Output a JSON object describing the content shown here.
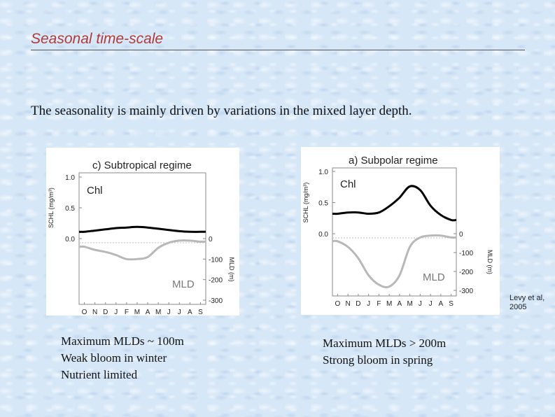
{
  "slide": {
    "title": "Seasonal time-scale",
    "intro": "The seasonality is mainly driven by variations in the mixed layer depth."
  },
  "citation": {
    "line1": "Levy et al,",
    "line2": "2005"
  },
  "notes": {
    "left": [
      "Maximum MLDs ~ 100m",
      "Weak bloom in winter",
      "Nutrient limited"
    ],
    "right": [
      "Maximum MLDs > 200m",
      "Strong bloom in spring"
    ]
  },
  "chart_data": [
    {
      "type": "line",
      "title": "c) Subtropical regime",
      "months": [
        "O",
        "N",
        "D",
        "J",
        "F",
        "M",
        "A",
        "M",
        "J",
        "J",
        "A",
        "S"
      ],
      "left_axis": {
        "label": "SCHL (mg/m³)",
        "ticks": [
          "1.0",
          "0.5",
          "0.0"
        ],
        "range": [
          0,
          1.0
        ]
      },
      "right_axis": {
        "label": "MLD (m)",
        "ticks": [
          "0",
          "-100",
          "-200",
          "-300"
        ],
        "range": [
          -300,
          0
        ]
      },
      "series": [
        {
          "name": "Chl",
          "values": [
            0.11,
            0.13,
            0.15,
            0.17,
            0.18,
            0.19,
            0.18,
            0.16,
            0.14,
            0.12,
            0.11,
            0.11
          ]
        },
        {
          "name": "MLD",
          "values": [
            -40,
            -55,
            -65,
            -80,
            -100,
            -100,
            -90,
            -45,
            -20,
            -10,
            -10,
            -15
          ]
        }
      ]
    },
    {
      "type": "line",
      "title": "a) Subpolar regime",
      "months": [
        "O",
        "N",
        "D",
        "J",
        "F",
        "M",
        "A",
        "M",
        "J",
        "J",
        "A",
        "S"
      ],
      "left_axis": {
        "label": "SCHL (mg/m³)",
        "ticks": [
          "1.0",
          "0.5",
          "0.0"
        ],
        "range": [
          0,
          1.0
        ]
      },
      "right_axis": {
        "label": "MLD (m)",
        "ticks": [
          "0",
          "-100",
          "-200",
          "-300"
        ],
        "range": [
          -300,
          0
        ]
      },
      "series": [
        {
          "name": "Chl",
          "values": [
            0.32,
            0.34,
            0.34,
            0.32,
            0.34,
            0.44,
            0.58,
            0.76,
            0.7,
            0.45,
            0.3,
            0.22
          ]
        },
        {
          "name": "MLD",
          "values": [
            -40,
            -70,
            -130,
            -220,
            -270,
            -280,
            -220,
            -70,
            -20,
            -10,
            -10,
            -20
          ]
        }
      ]
    }
  ]
}
